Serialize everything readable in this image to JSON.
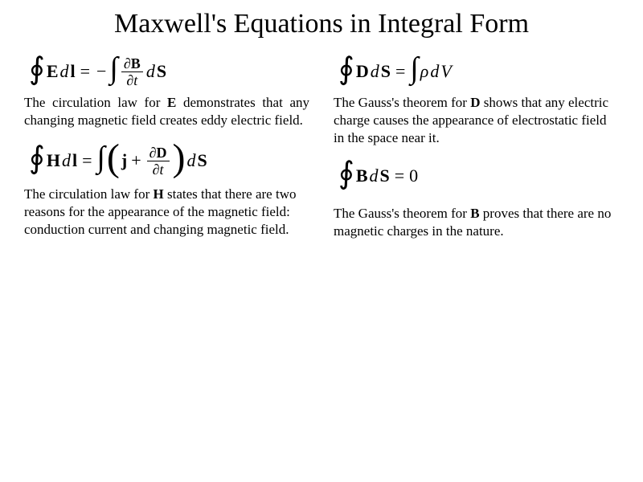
{
  "title": "Maxwell's Equations in Integral Form",
  "left": {
    "eq1": {
      "oint": "∮",
      "E": "E",
      "d1": "d",
      "l": "l",
      "equals": "=",
      "minus": "−",
      "int": "∫",
      "partialB": "∂",
      "B": "B",
      "partialt": "∂",
      "t": "t",
      "d2": "d",
      "S": "S"
    },
    "desc1": "The circulation law for E demonstrates that any changing magnetic field creates eddy electric field.",
    "eq2": {
      "oint": "∮",
      "H": "H",
      "d1": "d",
      "l": "l",
      "equals": "=",
      "int": "∫",
      "lp": "(",
      "j": "j",
      "plus": "+",
      "partialD": "∂",
      "D": "D",
      "partialt": "∂",
      "t": "t",
      "rp": ")",
      "d2": "d",
      "S": "S"
    },
    "desc2": "The circulation law for H states that there are two reasons for the appearance of the magnetic field: conduction current and changing magnetic field."
  },
  "right": {
    "eq3": {
      "oint": "∮",
      "D": "D",
      "d1": "d",
      "S": "S",
      "equals": "=",
      "int": "∫",
      "rho": "ρ",
      "d2": "d",
      "V": "V"
    },
    "desc3": "The Gauss's theorem for D shows that any electric charge causes the appearance of electrostatic field  in the space near it.",
    "eq4": {
      "oint": "∮",
      "B": "B",
      "d1": "d",
      "S": "S",
      "equals": "=",
      "zero": "0"
    },
    "desc4": "The Gauss's theorem for B proves that there are no magnetic charges in the nature."
  },
  "styles": {
    "background_color": "#ffffff",
    "text_color": "#000000",
    "title_fontsize": 34,
    "equation_fontsize": 22,
    "body_fontsize": 17,
    "font_family": "Times New Roman"
  }
}
